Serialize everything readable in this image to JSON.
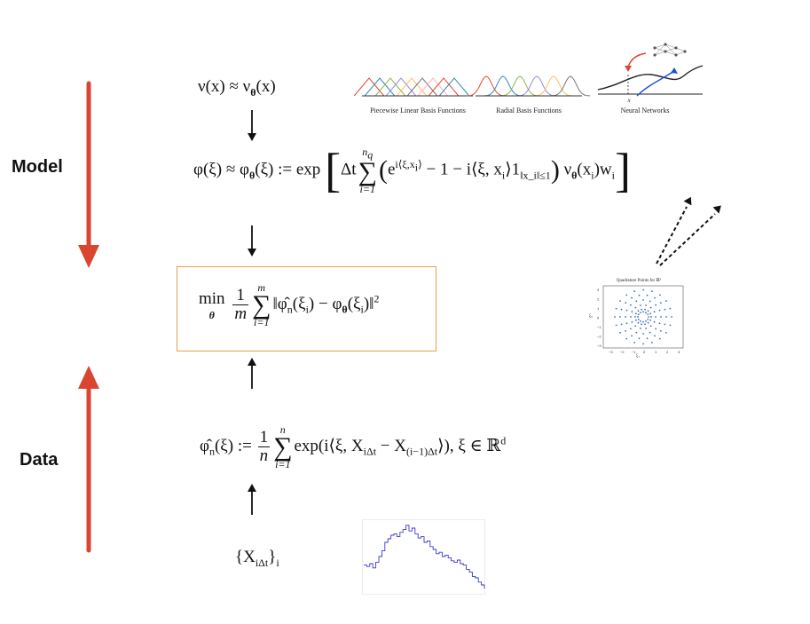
{
  "side_labels": {
    "model": "Model",
    "data": "Data"
  },
  "formulas": {
    "nu_approx": {
      "lhs": "ν(x) ≈ ν",
      "sub": "θ",
      "rhs": "(x)"
    },
    "phi_model": {
      "lhs": "φ(ξ) ≈ φ",
      "sub": "θ",
      "mid": "(ξ) := exp",
      "dt": "Δt",
      "sum_top": "n",
      "sum_top_sub": "q",
      "sum_bot": "i=1",
      "exp_base": "e",
      "exp_sup": "i⟨ξ,x",
      "exp_sup_sub": "i",
      "exp_sup_close": "⟩",
      "minus_one": "− 1 − i⟨ξ, x",
      "minus_one_sub": "i",
      "indicator": "⟩1",
      "indicator_sub": "‖x_i‖≤1",
      "nu_part": "ν",
      "nu_sub": "θ",
      "nu_arg": "(x",
      "nu_arg_sub": "i",
      "nu_close": ")w",
      "w_sub": "i"
    },
    "min_objective": {
      "min": "min",
      "min_sub": "θ",
      "frac_num": "1",
      "frac_den": "m",
      "sum_top": "m",
      "sum_bot": "i=1",
      "norm_open": "‖",
      "phi_hat": "φ̂",
      "phi_hat_sub": "n",
      "arg": "(ξ",
      "arg_sub": "i",
      "minus": ") − φ",
      "phi_sub": "θ",
      "arg2": "(ξ",
      "arg2_sub": "i",
      "norm_close": ")‖",
      "sq": "2"
    },
    "empirical_cf": {
      "lhs": "φ̂",
      "lhs_sub": "n",
      "def": "(ξ) :=",
      "frac_num": "1",
      "frac_den": "n",
      "sum_top": "n",
      "sum_bot": "i=1",
      "body": "exp(i⟨ξ, X",
      "x1_sub": "iΔt",
      "minus": " − X",
      "x2_sub": "(i−1)Δt",
      "close": "⟩),  ξ ∈ ℝ",
      "sup": "d"
    },
    "samples": {
      "body": "{X",
      "sub": "iΔt",
      "close": "}",
      "outer_sub": "i"
    }
  },
  "thumbnails": {
    "piecewise": {
      "caption": "Piecewise Linear Basis Functions"
    },
    "radial": {
      "caption": "Radial Basis Functions"
    },
    "neural": {
      "caption": "Neural Networks",
      "axis_label": "x"
    },
    "quadrature": {
      "title": "Quadrature Points for ℝ²",
      "y_label": "ξ₂",
      "x_label": "ξ₁",
      "x_ticks": [
        "−3",
        "−2",
        "−1",
        "0",
        "1",
        "2",
        "3"
      ],
      "y_ticks": [
        "3",
        "2",
        "1",
        "0",
        "−1",
        "−2",
        "−3"
      ]
    },
    "time_series": {}
  },
  "colors": {
    "main_arrow": "#d9452f",
    "objective_box": "#e8a04a",
    "basis": [
      "#e24a33",
      "#348abd",
      "#8eba42",
      "#988ed5",
      "#fbc15e",
      "#777777",
      "#ffb5b8"
    ],
    "series_line": "#3a3ad0",
    "quad_points": "#3b6fb6"
  }
}
